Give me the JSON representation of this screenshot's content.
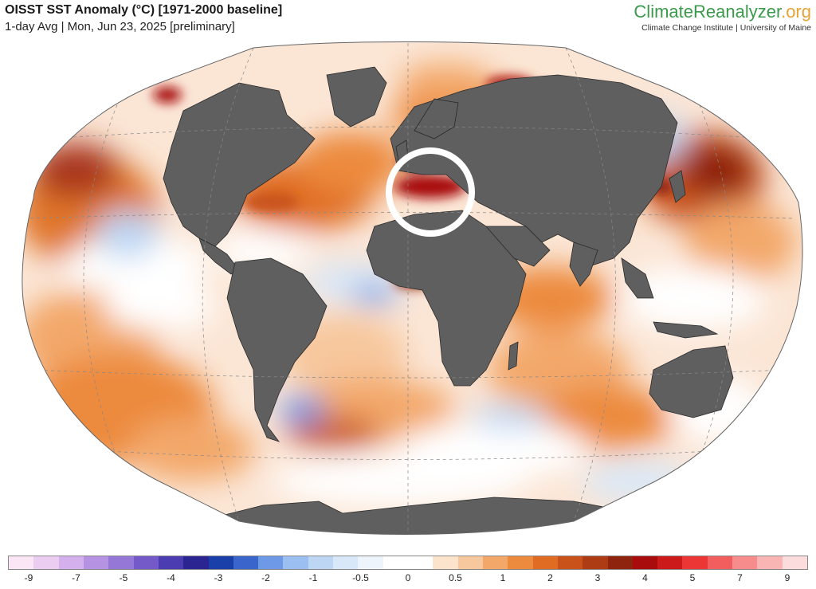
{
  "header": {
    "title": "OISST SST Anomaly (°C) [1971-2000 baseline]",
    "subtitle": "1-day Avg | Mon, Jun 23, 2025 [preliminary]"
  },
  "brand": {
    "logo_part1": "Climate",
    "logo_part2": "Reanalyzer",
    "logo_part3": ".org",
    "tagline": "Climate Change Institute | University of Maine",
    "color_green": "#3b9a4b",
    "color_orange": "#e8a235"
  },
  "map": {
    "projection": "Robinson",
    "ocean_colors": {
      "warm_strong": "#a01010",
      "warm": "#e0762a",
      "mild_warm": "#f3c7a0",
      "neutral": "#ffffff",
      "cool": "#bcd6f3",
      "cold": "#4a7bd8"
    },
    "land_color": "#5f5f5f",
    "highlight": "Mediterranean Sea (circled)"
  },
  "legend": {
    "colors": [
      "#fbe6f6",
      "#eccdf2",
      "#d4b0ec",
      "#b592e2",
      "#9577d8",
      "#735ac8",
      "#4c3cb1",
      "#2a2590",
      "#1b3fa8",
      "#3a66cc",
      "#6e99e6",
      "#9bbff0",
      "#bcd6f3",
      "#d9e8f8",
      "#eef4fb",
      "#ffffff",
      "#ffffff",
      "#fbe3cc",
      "#f7c79d",
      "#f3a86a",
      "#ec8a3e",
      "#df6c22",
      "#c9521a",
      "#ad3b14",
      "#8e240e",
      "#a80c0c",
      "#cc1a1a",
      "#ec3636",
      "#f25e5e",
      "#f68c8c",
      "#f9b4b4",
      "#fcdcdc"
    ],
    "labels": [
      "-9",
      "-7",
      "-5",
      "-4",
      "-3",
      "-2",
      "-1",
      "-0.5",
      "0",
      "0.5",
      "1",
      "2",
      "3",
      "4",
      "5",
      "7",
      "9"
    ]
  }
}
